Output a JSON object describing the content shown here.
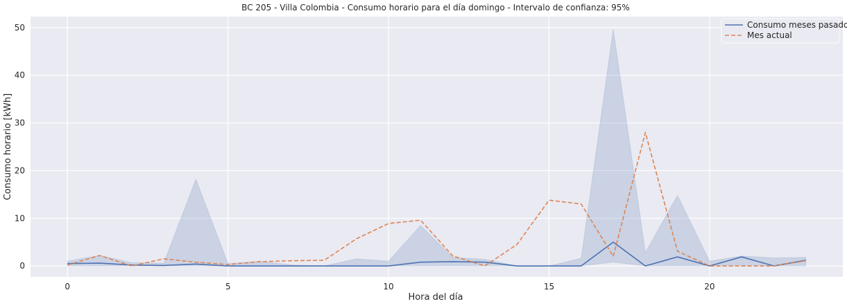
{
  "chart_data": {
    "type": "line",
    "title": "BC 205 - Villa Colombia - Consumo horario para el día domingo - Intervalo de confianza: 95%",
    "xlabel": "Hora del día",
    "ylabel": "Consumo horario [kWh]",
    "xlim": [
      -1.15,
      24.15
    ],
    "ylim": [
      -2.3,
      52.3
    ],
    "xticks": [
      0,
      5,
      10,
      15,
      20
    ],
    "yticks": [
      0,
      10,
      20,
      30,
      40,
      50
    ],
    "grid": true,
    "legend_position": "top-right",
    "x": [
      0,
      1,
      2,
      3,
      4,
      5,
      6,
      7,
      8,
      9,
      10,
      11,
      12,
      13,
      14,
      15,
      16,
      17,
      18,
      19,
      20,
      21,
      22,
      23
    ],
    "series": [
      {
        "name": "Consumo meses pasados",
        "color": "#4c72b0",
        "style": "solid",
        "values": [
          0.5,
          0.6,
          0.2,
          0.1,
          0.4,
          0.0,
          0.0,
          0.0,
          0.0,
          0.0,
          0.0,
          0.8,
          0.9,
          0.8,
          0.0,
          0.0,
          0.0,
          5.0,
          0.0,
          1.9,
          0.0,
          1.9,
          0.0,
          1.2
        ],
        "ci_low": [
          0.0,
          0.0,
          0.0,
          0.0,
          0.0,
          0.0,
          0.0,
          0.0,
          0.0,
          0.0,
          0.0,
          0.0,
          0.0,
          0.0,
          0.0,
          0.0,
          0.0,
          0.8,
          0.0,
          0.0,
          0.0,
          0.0,
          0.0,
          0.0
        ],
        "ci_high": [
          1.0,
          2.2,
          0.7,
          0.6,
          18.2,
          0.5,
          1.0,
          0.2,
          0.0,
          1.5,
          1.0,
          8.5,
          1.8,
          1.4,
          0.0,
          0.0,
          1.6,
          49.7,
          2.8,
          14.8,
          1.0,
          2.1,
          1.7,
          1.8
        ],
        "ci_color": "#4c72b0"
      },
      {
        "name": "Mes actual",
        "color": "#dd8452",
        "style": "dashed",
        "values": [
          0.2,
          2.2,
          0.0,
          1.5,
          0.8,
          0.3,
          0.9,
          1.1,
          1.2,
          5.7,
          8.9,
          9.6,
          2.1,
          0.0,
          4.5,
          13.8,
          13.0,
          2.0,
          28.0,
          3.1,
          0.0,
          0.0,
          0.0,
          1.1
        ]
      }
    ]
  }
}
